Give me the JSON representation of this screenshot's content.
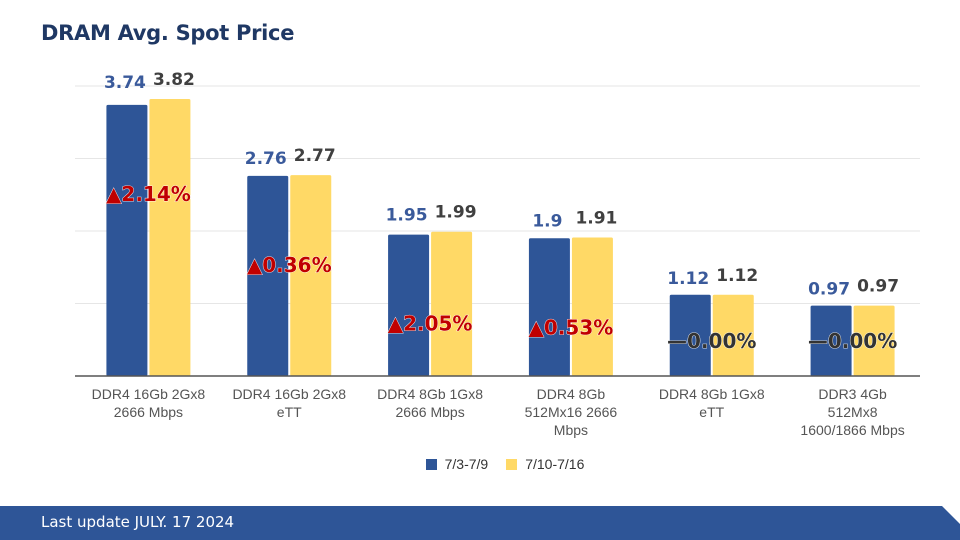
{
  "title": "DRAM Avg. Spot Price",
  "footer": {
    "text": "Last update JULY. 17 2024"
  },
  "colors": {
    "series1": "#2e5597",
    "series2": "#ffd966",
    "up": "#c00000",
    "flat": "#333333",
    "footer": "#2e5597"
  },
  "chart_data": {
    "type": "bar",
    "title": "DRAM Avg. Spot Price",
    "categories": [
      [
        "DDR4 16Gb 2Gx8",
        "2666 Mbps"
      ],
      [
        "DDR4 16Gb 2Gx8",
        "eTT"
      ],
      [
        "DDR4 8Gb 1Gx8",
        "2666 Mbps"
      ],
      [
        "DDR4 8Gb",
        "512Mx16 2666",
        "Mbps"
      ],
      [
        "DDR4 8Gb 1Gx8",
        "eTT"
      ],
      [
        "DDR3 4Gb",
        "512Mx8",
        "1600/1866 Mbps"
      ]
    ],
    "series": [
      {
        "name": "7/3-7/9",
        "values": [
          3.74,
          2.76,
          1.95,
          1.9,
          1.12,
          0.97
        ]
      },
      {
        "name": "7/10-7/16",
        "values": [
          3.82,
          2.77,
          1.99,
          1.91,
          1.12,
          0.97
        ]
      }
    ],
    "changes": [
      {
        "symbol": "▲",
        "text": "2.14%",
        "trend": "up"
      },
      {
        "symbol": "▲",
        "text": "0.36%",
        "trend": "up"
      },
      {
        "symbol": "▲",
        "text": "2.05%",
        "trend": "up"
      },
      {
        "symbol": "▲",
        "text": "0.53%",
        "trend": "up"
      },
      {
        "symbol": "—",
        "text": "0.00%",
        "trend": "flat"
      },
      {
        "symbol": "—",
        "text": "0.00%",
        "trend": "flat"
      }
    ],
    "ylim": [
      0,
      4
    ],
    "grid": true,
    "legend": "bottom"
  }
}
